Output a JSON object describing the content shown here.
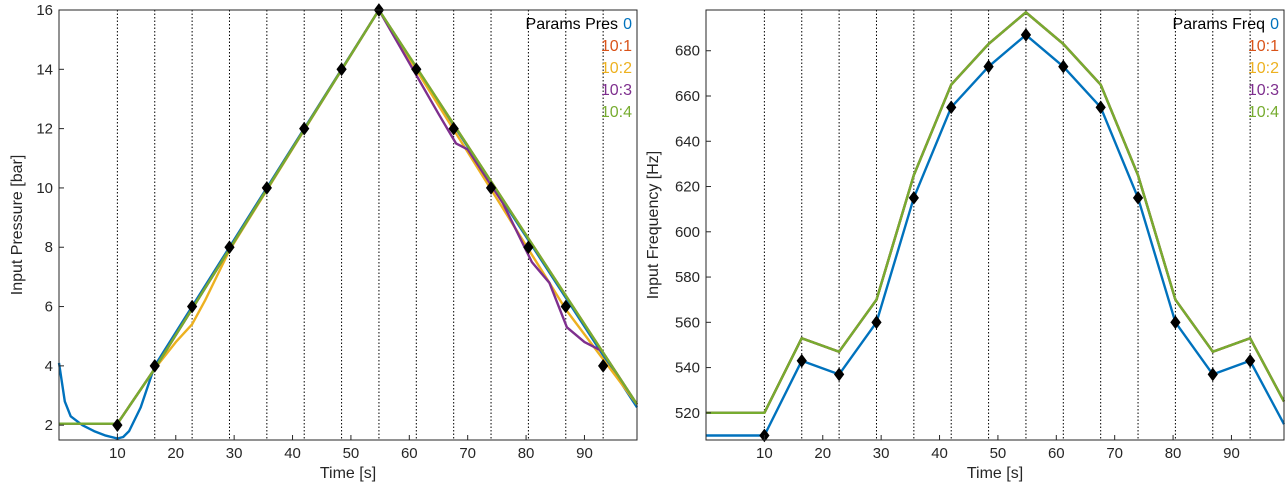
{
  "chart_data": [
    {
      "type": "line",
      "xlabel": "Time [s]",
      "ylabel": "Input Pressure [bar]",
      "xlim": [
        0,
        99
      ],
      "ylim": [
        1.5,
        16
      ],
      "xticks": [
        10,
        20,
        30,
        40,
        50,
        60,
        70,
        80,
        90
      ],
      "yticks": [
        2,
        4,
        6,
        8,
        10,
        12,
        14,
        16
      ],
      "xtick_labels": [
        "10",
        "20",
        "30",
        "40",
        "50",
        "60",
        "70",
        "80",
        "90"
      ],
      "ytick_labels": [
        "2",
        "4",
        "6",
        "8",
        "10",
        "12",
        "14",
        "16"
      ],
      "grid_x": [
        10,
        16.4,
        22.8,
        29.2,
        35.6,
        42,
        48.4,
        54.8,
        61.2,
        67.6,
        74,
        80.4,
        86.8,
        93.2
      ],
      "legend": {
        "title": "Params Pres",
        "placement": "top-right"
      },
      "series": [
        {
          "name": "0",
          "color": "#0072BD",
          "x": [
            0,
            1,
            2,
            4,
            6,
            8,
            10,
            11,
            12,
            14,
            16.4,
            54.8,
            99
          ],
          "y": [
            4.1,
            2.8,
            2.3,
            2.0,
            1.8,
            1.65,
            1.55,
            1.6,
            1.8,
            2.6,
            4.0,
            16,
            2.6
          ]
        },
        {
          "name": "10:1",
          "color": "#D95319",
          "x": [
            0,
            10,
            16.4,
            54.8,
            99
          ],
          "y": [
            2.05,
            2.05,
            3.9,
            16,
            2.7
          ]
        },
        {
          "name": "10:2",
          "color": "#EDB120",
          "x": [
            0,
            10,
            16.4,
            20,
            22.8,
            25,
            29.2,
            54.8,
            84,
            86.8,
            99
          ],
          "y": [
            2.05,
            2.05,
            3.9,
            4.8,
            5.4,
            6.2,
            7.9,
            16,
            6.8,
            5.9,
            2.7
          ]
        },
        {
          "name": "10:3",
          "color": "#7E2F8E",
          "x": [
            0,
            10,
            16.4,
            54.8,
            65,
            68,
            70,
            76,
            79,
            81,
            84,
            87,
            90,
            93,
            99
          ],
          "y": [
            2.05,
            2.05,
            3.9,
            16,
            12.5,
            11.5,
            11.3,
            9.5,
            8.3,
            7.5,
            6.8,
            5.3,
            4.8,
            4.5,
            2.7
          ]
        },
        {
          "name": "10:4",
          "color": "#77AC30",
          "x": [
            0,
            10,
            16.4,
            54.8,
            99
          ],
          "y": [
            2.05,
            2.05,
            3.9,
            16,
            2.7
          ]
        }
      ],
      "markers": {
        "x": [
          10,
          16.4,
          22.8,
          29.2,
          35.6,
          42,
          48.4,
          54.8,
          61.2,
          67.6,
          74,
          80.4,
          86.8,
          93.2
        ],
        "y": [
          2,
          4,
          6,
          8,
          10,
          12,
          14,
          16,
          14,
          12,
          10,
          8,
          6,
          4
        ]
      }
    },
    {
      "type": "line",
      "xlabel": "Time [s]",
      "ylabel": "Input Frequency [Hz]",
      "xlim": [
        0,
        99
      ],
      "ylim": [
        508,
        698
      ],
      "xticks": [
        10,
        20,
        30,
        40,
        50,
        60,
        70,
        80,
        90
      ],
      "yticks": [
        520,
        540,
        560,
        580,
        600,
        620,
        640,
        660,
        680
      ],
      "xtick_labels": [
        "10",
        "20",
        "30",
        "40",
        "50",
        "60",
        "70",
        "80",
        "90"
      ],
      "ytick_labels": [
        "520",
        "540",
        "560",
        "580",
        "600",
        "620",
        "640",
        "660",
        "680"
      ],
      "grid_x": [
        10,
        16.4,
        22.8,
        29.2,
        35.6,
        42,
        48.4,
        54.8,
        61.2,
        67.6,
        74,
        80.4,
        86.8,
        93.2
      ],
      "legend": {
        "title": "Params Freq",
        "placement": "top-right"
      },
      "series": [
        {
          "name": "0",
          "color": "#0072BD",
          "x": [
            0,
            10,
            16.4,
            22.8,
            29.2,
            35.6,
            42,
            48.4,
            54.8,
            61.2,
            67.6,
            74,
            80.4,
            86.8,
            93.2,
            99
          ],
          "y": [
            510,
            510,
            543,
            537,
            560,
            615,
            655,
            673,
            687,
            673,
            655,
            615,
            560,
            537,
            543,
            515
          ]
        },
        {
          "name": "10:1",
          "color": "#D95319",
          "x": [
            0,
            10,
            16.4,
            22.8,
            29.2,
            35.6,
            42,
            48.4,
            54.8,
            61.2,
            67.6,
            74,
            80.4,
            86.8,
            93.2,
            99
          ],
          "y": [
            520,
            520,
            553,
            547,
            570,
            625,
            665,
            683,
            697,
            683,
            665,
            625,
            570,
            547,
            553,
            525
          ]
        },
        {
          "name": "10:2",
          "color": "#EDB120",
          "x": [
            0,
            10,
            16.4,
            22.8,
            29.2,
            35.6,
            42,
            48.4,
            54.8,
            61.2,
            67.6,
            74,
            80.4,
            86.8,
            93.2,
            99
          ],
          "y": [
            520,
            520,
            553,
            547,
            570,
            625,
            665,
            683,
            697,
            683,
            665,
            625,
            570,
            547,
            553,
            525
          ]
        },
        {
          "name": "10:3",
          "color": "#7E2F8E",
          "x": [
            0,
            10,
            16.4,
            22.8,
            29.2,
            35.6,
            42,
            48.4,
            54.8,
            61.2,
            67.6,
            74,
            80.4,
            86.8,
            93.2,
            99
          ],
          "y": [
            520,
            520,
            553,
            547,
            570,
            625,
            665,
            683,
            697,
            683,
            665,
            625,
            570,
            547,
            553,
            525
          ]
        },
        {
          "name": "10:4",
          "color": "#77AC30",
          "x": [
            0,
            10,
            16.4,
            22.8,
            29.2,
            35.6,
            42,
            48.4,
            54.8,
            61.2,
            67.6,
            74,
            80.4,
            86.8,
            93.2,
            99
          ],
          "y": [
            520,
            520,
            553,
            547,
            570,
            625,
            665,
            683,
            697,
            683,
            665,
            625,
            570,
            547,
            553,
            525
          ]
        }
      ],
      "markers": {
        "x": [
          10,
          16.4,
          22.8,
          29.2,
          35.6,
          42,
          48.4,
          54.8,
          61.2,
          67.6,
          74,
          80.4,
          86.8,
          93.2
        ],
        "y": [
          510,
          543,
          537,
          560,
          615,
          655,
          673,
          687,
          673,
          655,
          615,
          560,
          537,
          543
        ]
      }
    }
  ]
}
